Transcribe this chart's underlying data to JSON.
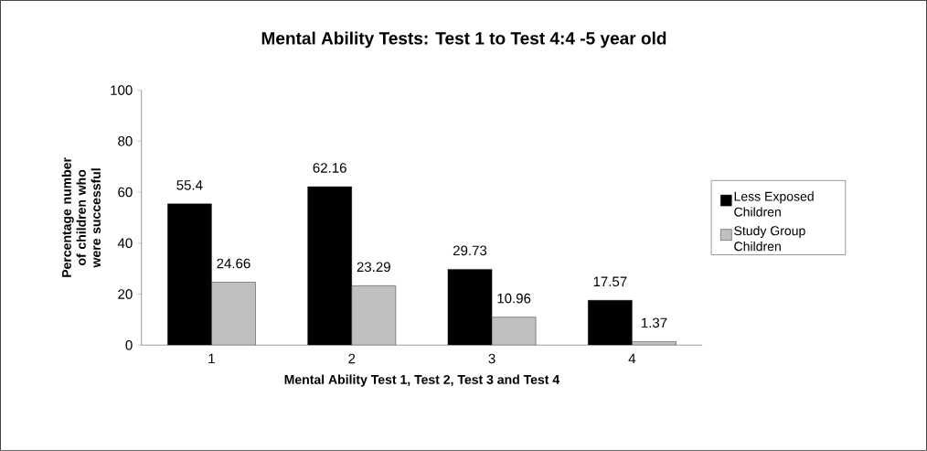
{
  "chart_data": {
    "type": "bar",
    "title": "Mental Ability Tests: Test 1 to Test 4:4 -5 year old",
    "xlabel": "Mental Ability Test 1, Test 2, Test 3 and Test 4",
    "ylabel": "Percentage number of children who were successful",
    "categories": [
      "1",
      "2",
      "3",
      "4"
    ],
    "series": [
      {
        "name": "Less Exposed Children",
        "color": "#000000",
        "values": [
          55.4,
          62.16,
          29.73,
          17.57
        ],
        "value_labels": [
          "55.4",
          "62.16",
          "29.73",
          "17.57"
        ]
      },
      {
        "name": "Study Group Children",
        "color": "#c0c0c0",
        "values": [
          24.66,
          23.29,
          10.96,
          1.37
        ],
        "value_labels": [
          "24.66",
          "23.29",
          "10.96",
          "1.37"
        ]
      }
    ],
    "ylim": [
      0,
      100
    ],
    "yticks": [
      0,
      20,
      40,
      60,
      80,
      100
    ],
    "grid": false,
    "legend": "right"
  }
}
